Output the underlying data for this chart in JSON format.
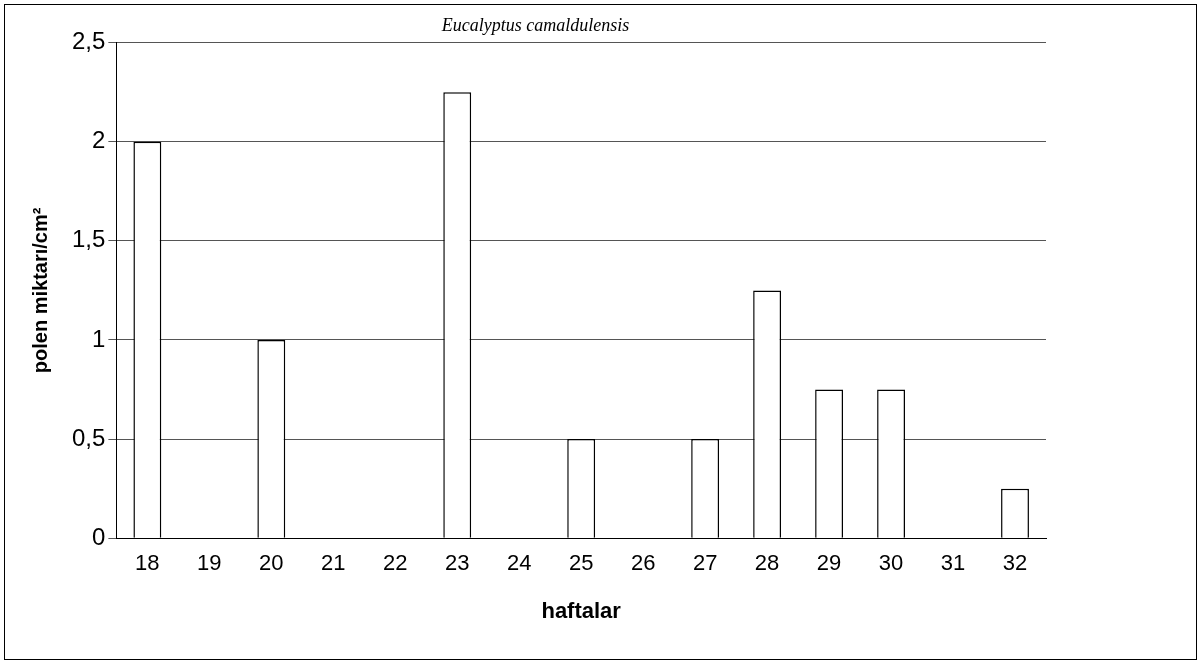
{
  "chart_data": {
    "type": "bar",
    "title": "Eucalyptus camaldulensis",
    "xlabel": "haftalar",
    "ylabel": "polen miktarı/cm²",
    "categories": [
      "18",
      "19",
      "20",
      "21",
      "22",
      "23",
      "24",
      "25",
      "26",
      "27",
      "28",
      "29",
      "30",
      "31",
      "32"
    ],
    "values": [
      2,
      0,
      1,
      0,
      0,
      2.25,
      0,
      0.5,
      0,
      0.5,
      1.25,
      0.75,
      0.75,
      0,
      0.25
    ],
    "color": "#ffffff",
    "ylim": [
      0,
      2.5
    ],
    "yticks": [
      {
        "value": 0,
        "label": "0"
      },
      {
        "value": 0.5,
        "label": "0,5"
      },
      {
        "value": 1,
        "label": "1"
      },
      {
        "value": 1.5,
        "label": "1,5"
      },
      {
        "value": 2,
        "label": "2"
      },
      {
        "value": 2.5,
        "label": "2,5"
      }
    ],
    "grid": "y",
    "legend": false
  }
}
